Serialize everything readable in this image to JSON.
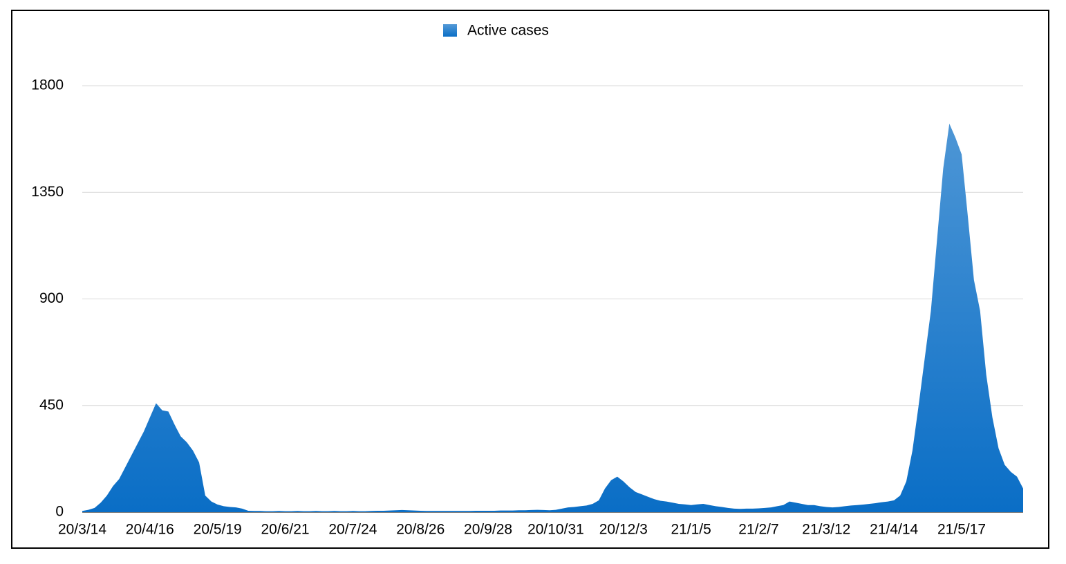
{
  "chart_data": {
    "type": "area",
    "categories": [
      "20/3/14",
      null,
      null,
      null,
      null,
      null,
      null,
      null,
      null,
      null,
      null,
      "20/4/16",
      null,
      null,
      null,
      null,
      null,
      null,
      null,
      null,
      null,
      null,
      "20/5/19",
      null,
      null,
      null,
      null,
      null,
      null,
      null,
      null,
      null,
      null,
      "20/6/21",
      null,
      null,
      null,
      null,
      null,
      null,
      null,
      null,
      null,
      null,
      "20/7/24",
      null,
      null,
      null,
      null,
      null,
      null,
      null,
      null,
      null,
      null,
      "20/8/26",
      null,
      null,
      null,
      null,
      null,
      null,
      null,
      null,
      null,
      null,
      "20/9/28",
      null,
      null,
      null,
      null,
      null,
      null,
      null,
      null,
      null,
      null,
      "20/10/31",
      null,
      null,
      null,
      null,
      null,
      null,
      null,
      null,
      null,
      null,
      "20/12/3",
      null,
      null,
      null,
      null,
      null,
      null,
      null,
      null,
      null,
      null,
      "21/1/5",
      null,
      null,
      null,
      null,
      null,
      null,
      null,
      null,
      null,
      null,
      "21/2/7",
      null,
      null,
      null,
      null,
      null,
      null,
      null,
      null,
      null,
      null,
      "21/3/12",
      null,
      null,
      null,
      null,
      null,
      null,
      null,
      null,
      null,
      null,
      "21/4/14",
      null,
      null,
      null,
      null,
      null,
      null,
      null,
      null,
      null,
      null,
      "21/5/17",
      null,
      null,
      null,
      null,
      null,
      null,
      null,
      null,
      null,
      null
    ],
    "series": [
      {
        "name": "Active cases",
        "color": "#0a6ec6",
        "values": [
          5,
          10,
          18,
          40,
          70,
          110,
          140,
          190,
          240,
          290,
          340,
          400,
          460,
          430,
          425,
          370,
          320,
          295,
          260,
          210,
          70,
          45,
          32,
          25,
          22,
          20,
          15,
          6,
          5,
          5,
          4,
          4,
          5,
          4,
          4,
          5,
          4,
          4,
          5,
          4,
          4,
          5,
          4,
          4,
          5,
          4,
          4,
          5,
          6,
          6,
          7,
          8,
          9,
          8,
          7,
          6,
          5,
          5,
          5,
          5,
          5,
          5,
          5,
          5,
          6,
          6,
          6,
          6,
          7,
          7,
          7,
          8,
          8,
          9,
          10,
          9,
          8,
          10,
          15,
          20,
          22,
          25,
          28,
          35,
          50,
          100,
          135,
          150,
          130,
          105,
          85,
          75,
          65,
          55,
          48,
          45,
          40,
          35,
          33,
          30,
          33,
          35,
          30,
          25,
          22,
          18,
          15,
          14,
          15,
          15,
          16,
          18,
          20,
          25,
          30,
          45,
          40,
          35,
          30,
          30,
          25,
          22,
          20,
          22,
          25,
          28,
          30,
          32,
          35,
          38,
          42,
          45,
          50,
          70,
          130,
          260,
          450,
          650,
          850,
          1150,
          1450,
          1640,
          1580,
          1510,
          1250,
          980,
          850,
          580,
          400,
          270,
          200,
          170,
          150,
          100
        ]
      }
    ],
    "ylim": [
      0,
      1800
    ],
    "yticks": [
      0,
      450,
      900,
      1350,
      1800
    ],
    "grid": true,
    "legend": "top"
  }
}
